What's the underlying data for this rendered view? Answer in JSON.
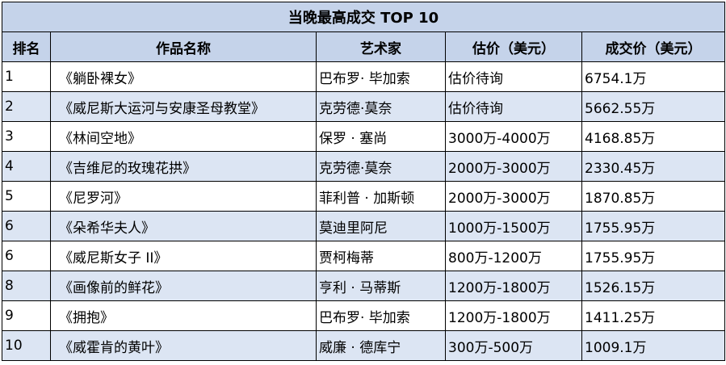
{
  "table": {
    "title": "当晚最高成交 TOP 10",
    "headers": [
      "排名",
      "作品名称",
      "艺术家",
      "估价（美元）",
      "成交价（美元）"
    ],
    "rows": [
      {
        "rank": "1",
        "work": "《躺卧裸女》",
        "artist": "巴布罗· 毕加索",
        "estimate": "估价待询",
        "price": "6754.1万"
      },
      {
        "rank": "2",
        "work": "《威尼斯大运河与安康圣母教堂》",
        "artist": "克劳德·莫奈",
        "estimate": "估价待询",
        "price": "5662.55万"
      },
      {
        "rank": "3",
        "work": "《林间空地》",
        "artist": "保罗 · 塞尚",
        "estimate": "3000万-4000万",
        "price": "4168.85万"
      },
      {
        "rank": "4",
        "work": "《吉维尼的玫瑰花拱》",
        "artist": "克劳德·莫奈",
        "estimate": "2000万-3000万",
        "price": "2330.45万"
      },
      {
        "rank": "5",
        "work": "《尼罗河》",
        "artist": "菲利普 · 加斯顿",
        "estimate": "2000万-3000万",
        "price": "1870.85万"
      },
      {
        "rank": "6",
        "work": "《朵希华夫人》",
        "artist": "莫迪里阿尼",
        "estimate": "1000万-1500万",
        "price": "1755.95万"
      },
      {
        "rank": "6",
        "work": "《威尼斯女子 II》",
        "artist": "贾柯梅蒂",
        "estimate": "800万-1200万",
        "price": "1755.95万"
      },
      {
        "rank": "8",
        "work": "《画像前的鲜花》",
        "artist": "亨利 · 马蒂斯",
        "estimate": "1200万-1800万",
        "price": "1526.15万"
      },
      {
        "rank": "9",
        "work": "《拥抱》",
        "artist": "巴布罗· 毕加索",
        "estimate": "1200万-1800万",
        "price": "1411.25万"
      },
      {
        "rank": "10",
        "work": "《威霍肯的黄叶》",
        "artist": "威廉 · 德库宁",
        "estimate": "300万-500万",
        "price": "1009.1万"
      }
    ]
  },
  "colors": {
    "header_fill": "#c5d3ea",
    "alt_row_fill": "#dce5f3",
    "border": "#000000"
  }
}
